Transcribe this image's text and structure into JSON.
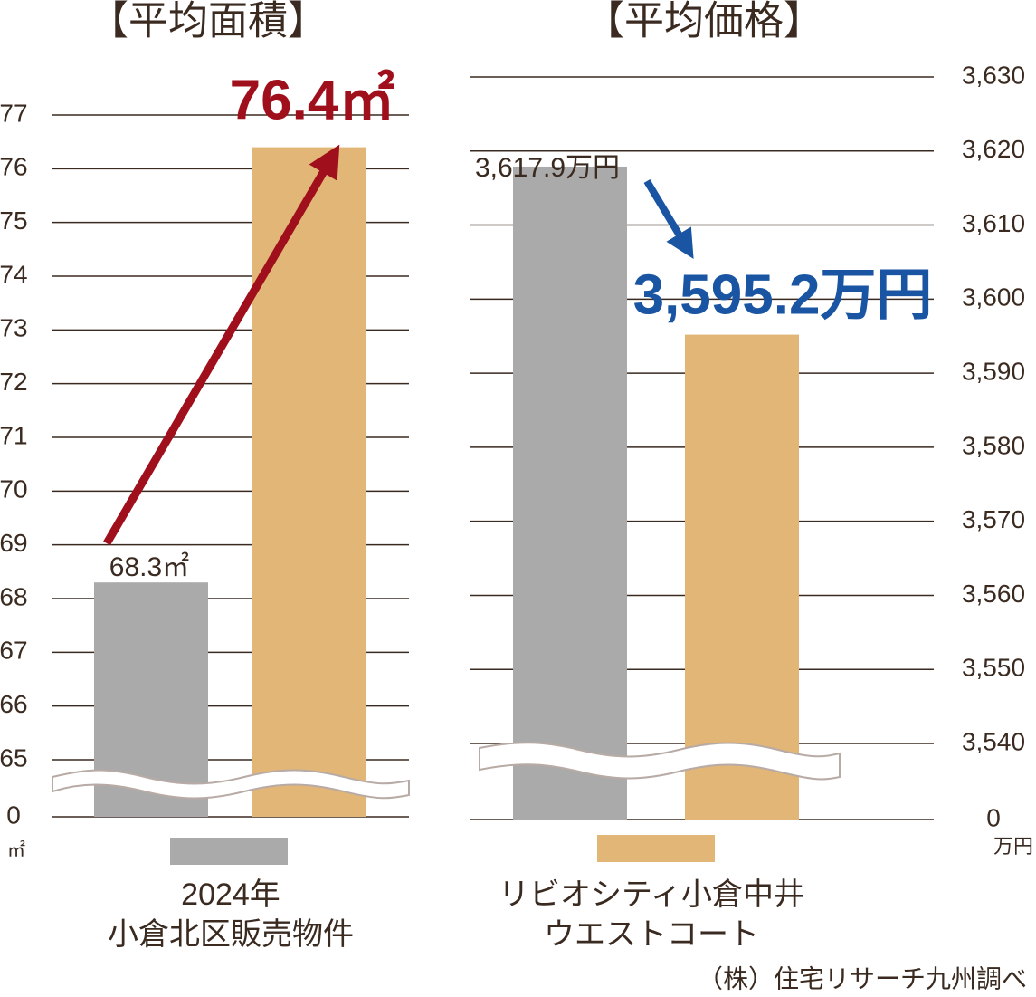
{
  "chart_data": [
    {
      "type": "bar",
      "title": "【平均面積】",
      "unit": "㎡",
      "axis_break": true,
      "values": [
        68.3,
        76.4
      ],
      "value_labels": [
        "68.3㎡",
        "76.4㎡"
      ],
      "colors": [
        "#aaaaaa",
        "#e1b677"
      ],
      "label_colors": [
        "#3a2a20",
        "#a00f1c"
      ],
      "ylim": [
        0,
        77.5
      ],
      "yticks": [
        0,
        65,
        66,
        67,
        68,
        69,
        70,
        71,
        72,
        73,
        74,
        75,
        76,
        77
      ],
      "grid": true
    },
    {
      "type": "bar",
      "title": "【平均価格】",
      "unit": "万円",
      "axis_break": true,
      "values": [
        3617.9,
        3595.2
      ],
      "value_labels": [
        "3,617.9万円",
        "3,595.2万円"
      ],
      "colors": [
        "#aaaaaa",
        "#e1b677"
      ],
      "label_colors": [
        "#3a2a20",
        "#1a55a3"
      ],
      "ylim": [
        0,
        3632
      ],
      "yticks": [
        0,
        {
          "value": 3540,
          "label": "3,540"
        },
        {
          "value": 3550,
          "label": "3,550"
        },
        {
          "value": 3560,
          "label": "3,560"
        },
        {
          "value": 3570,
          "label": "3,570"
        },
        {
          "value": 3580,
          "label": "3,580"
        },
        {
          "value": 3590,
          "label": "3,590"
        },
        {
          "value": 3600,
          "label": "3,600"
        },
        {
          "value": 3610,
          "label": "3,610"
        },
        {
          "value": 3620,
          "label": "3,620"
        },
        {
          "value": 3630,
          "label": "3,630"
        }
      ],
      "grid": true
    }
  ],
  "legend": [
    {
      "name": "2024年\n小倉北区販売物件",
      "color": "#aaaaaa"
    },
    {
      "name": "リビオシティ小倉中井\nウエストコート",
      "color": "#e1b677"
    }
  ],
  "source": "（株）住宅リサーチ九州調べ"
}
